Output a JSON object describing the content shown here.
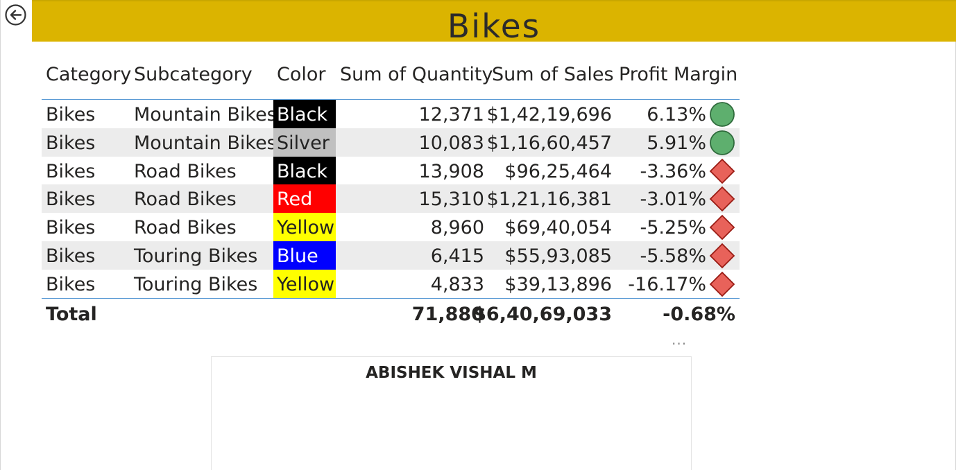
{
  "page": {
    "title": "Bikes"
  },
  "colors": {
    "title_bar": "#dbb400",
    "positive_icon": "#5eaf6e",
    "negative_icon": "#e8625a",
    "row_alt": "#ececec",
    "rule": "#5b9bd5"
  },
  "icons": {
    "back": "back-arrow-icon",
    "positive": "green-circle-icon",
    "negative": "red-diamond-icon"
  },
  "table": {
    "headers": {
      "category": "Category",
      "subcategory": "Subcategory",
      "color": "Color",
      "quantity": "Sum of Quantity",
      "sales": "Sum of Sales",
      "margin": "Profit Margin"
    },
    "rows": [
      {
        "category": "Bikes",
        "subcategory": "Mountain Bikes",
        "color": "Black",
        "color_bg": "#000000",
        "color_fg": "#ffffff",
        "quantity": "12,371",
        "sales": "$1,42,19,696",
        "margin": "6.13%",
        "status": "positive"
      },
      {
        "category": "Bikes",
        "subcategory": "Mountain Bikes",
        "color": "Silver",
        "color_bg": "#c0c0c0",
        "color_fg": "#222222",
        "quantity": "10,083",
        "sales": "$1,16,60,457",
        "margin": "5.91%",
        "status": "positive"
      },
      {
        "category": "Bikes",
        "subcategory": "Road Bikes",
        "color": "Black",
        "color_bg": "#000000",
        "color_fg": "#ffffff",
        "quantity": "13,908",
        "sales": "$96,25,464",
        "margin": "-3.36%",
        "status": "negative"
      },
      {
        "category": "Bikes",
        "subcategory": "Road Bikes",
        "color": "Red",
        "color_bg": "#ff0000",
        "color_fg": "#ffffff",
        "quantity": "15,310",
        "sales": "$1,21,16,381",
        "margin": "-3.01%",
        "status": "negative"
      },
      {
        "category": "Bikes",
        "subcategory": "Road Bikes",
        "color": "Yellow",
        "color_bg": "#ffff00",
        "color_fg": "#222222",
        "quantity": "8,960",
        "sales": "$69,40,054",
        "margin": "-5.25%",
        "status": "negative"
      },
      {
        "category": "Bikes",
        "subcategory": "Touring Bikes",
        "color": "Blue",
        "color_bg": "#0000ff",
        "color_fg": "#ffffff",
        "quantity": "6,415",
        "sales": "$55,93,085",
        "margin": "-5.58%",
        "status": "negative"
      },
      {
        "category": "Bikes",
        "subcategory": "Touring Bikes",
        "color": "Yellow",
        "color_bg": "#ffff00",
        "color_fg": "#222222",
        "quantity": "4,833",
        "sales": "$39,13,896",
        "margin": "-16.17%",
        "status": "negative"
      }
    ],
    "total": {
      "label": "Total",
      "quantity": "71,880",
      "sales": "$6,40,69,033",
      "margin": "-0.68%"
    }
  },
  "visual_menu": {
    "label": "..."
  },
  "card": {
    "name": "ABISHEK VISHAL M"
  }
}
